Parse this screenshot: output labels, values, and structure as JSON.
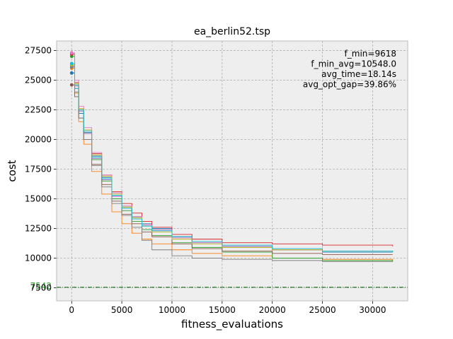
{
  "chart_data": {
    "type": "line",
    "title": "ea_berlin52.tsp",
    "xlabel": "fitness_evaluations",
    "ylabel": "cost",
    "xlim": [
      -1500,
      33500
    ],
    "ylim": [
      6400,
      28300
    ],
    "xticks": [
      0,
      5000,
      10000,
      15000,
      20000,
      25000,
      30000
    ],
    "yticks": [
      7500,
      10000,
      12500,
      15000,
      17500,
      20000,
      22500,
      25000,
      27500
    ],
    "grid": true,
    "annotations": [
      "f_min=9618",
      "f_min_avg=10548.0",
      "avg_time=18.14s",
      "avg_opt_gap=39.86%"
    ],
    "reference_line": {
      "y": 7542,
      "label": "7542",
      "color": "#006400"
    },
    "colors": [
      "#1f77b4",
      "#ff7f0e",
      "#2ca02c",
      "#d62728",
      "#9467bd",
      "#8c564b",
      "#e377c2",
      "#7f7f7f",
      "#bcbd22",
      "#17becf"
    ],
    "series": [
      {
        "x": [
          0,
          300,
          700,
          1200,
          2000,
          3000,
          4000,
          5000,
          6000,
          7000,
          8000,
          10000,
          12000,
          15000,
          20000,
          25000,
          32000
        ],
        "y": [
          25600,
          24300,
          22200,
          20600,
          18600,
          16800,
          15300,
          14300,
          13500,
          12900,
          12500,
          11800,
          11300,
          10900,
          10700,
          10500,
          10500
        ]
      },
      {
        "x": [
          0,
          300,
          700,
          1200,
          2000,
          3000,
          4000,
          5000,
          6000,
          7000,
          8000,
          10000,
          12000,
          15000,
          20000,
          25000,
          32000
        ],
        "y": [
          26000,
          23900,
          21500,
          19600,
          17300,
          15400,
          13900,
          12900,
          12100,
          11600,
          11200,
          10700,
          10400,
          10200,
          10000,
          9900,
          9800
        ]
      },
      {
        "x": [
          0,
          300,
          700,
          1200,
          2000,
          3000,
          4000,
          5000,
          6000,
          7000,
          8000,
          10000,
          12000,
          15000,
          20000,
          25000,
          32000
        ],
        "y": [
          27000,
          24600,
          22400,
          20500,
          18300,
          16500,
          15000,
          14000,
          13100,
          12400,
          11900,
          11300,
          10900,
          10500,
          10000,
          9800,
          9700
        ]
      },
      {
        "x": [
          0,
          300,
          700,
          1200,
          2000,
          3000,
          4000,
          5000,
          6000,
          7000,
          8000,
          10000,
          12000,
          15000,
          20000,
          25000,
          32000
        ],
        "y": [
          27200,
          24800,
          22600,
          20800,
          18800,
          17000,
          15600,
          14600,
          13800,
          13100,
          12600,
          12000,
          11600,
          11300,
          11200,
          11100,
          11000
        ]
      },
      {
        "x": [
          0,
          300,
          700,
          1200,
          2000,
          3000,
          4000,
          5000,
          6000,
          7000,
          8000,
          10000,
          12000,
          15000,
          20000,
          25000,
          32000
        ],
        "y": [
          26200,
          24500,
          22400,
          20500,
          18400,
          16600,
          15200,
          14200,
          13400,
          12800,
          12400,
          11800,
          11400,
          11000,
          10800,
          10600,
          10600
        ]
      },
      {
        "x": [
          0,
          300,
          700,
          1200,
          2000,
          3000,
          4000,
          5000,
          6000,
          7000,
          8000,
          10000,
          12000,
          15000,
          20000,
          25000,
          32000
        ],
        "y": [
          24600,
          23600,
          21800,
          20000,
          17900,
          16200,
          14800,
          13700,
          12900,
          12200,
          11800,
          11200,
          10800,
          10600,
          10400,
          10300,
          10300
        ]
      },
      {
        "x": [
          0,
          300,
          700,
          1200,
          2000,
          3000,
          4000,
          5000,
          6000,
          7000,
          8000,
          10000,
          12000,
          15000,
          20000,
          25000,
          32000
        ],
        "y": [
          27300,
          25000,
          22800,
          21000,
          18900,
          17000,
          15500,
          14400,
          13500,
          12800,
          12300,
          11700,
          11300,
          10900,
          10700,
          10600,
          10500
        ]
      },
      {
        "x": [
          0,
          300,
          700,
          1200,
          2000,
          3000,
          4000,
          5000,
          6000,
          7000,
          8000,
          10000,
          12000,
          15000,
          20000,
          25000,
          32000
        ],
        "y": [
          26100,
          24000,
          21800,
          20000,
          17800,
          16000,
          14600,
          13600,
          12600,
          11500,
          10700,
          10200,
          10000,
          9900,
          9800,
          9700,
          9700
        ]
      },
      {
        "x": [
          0,
          300,
          700,
          1200,
          2000,
          3000,
          4000,
          5000,
          6000,
          7000,
          8000,
          10000,
          12000,
          15000,
          20000,
          25000,
          32000
        ],
        "y": [
          26300,
          24700,
          22600,
          20800,
          18700,
          16900,
          15400,
          14300,
          13400,
          12700,
          12200,
          11600,
          11200,
          10900,
          10700,
          10600,
          10600
        ]
      },
      {
        "x": [
          0,
          300,
          700,
          1200,
          2000,
          3000,
          4000,
          5000,
          6000,
          7000,
          8000,
          10000,
          12000,
          15000,
          20000,
          25000,
          32000
        ],
        "y": [
          26400,
          24600,
          22500,
          20700,
          18500,
          16700,
          15300,
          14200,
          13300,
          12700,
          12300,
          11800,
          11400,
          11100,
          10800,
          10600,
          10500
        ]
      }
    ]
  }
}
